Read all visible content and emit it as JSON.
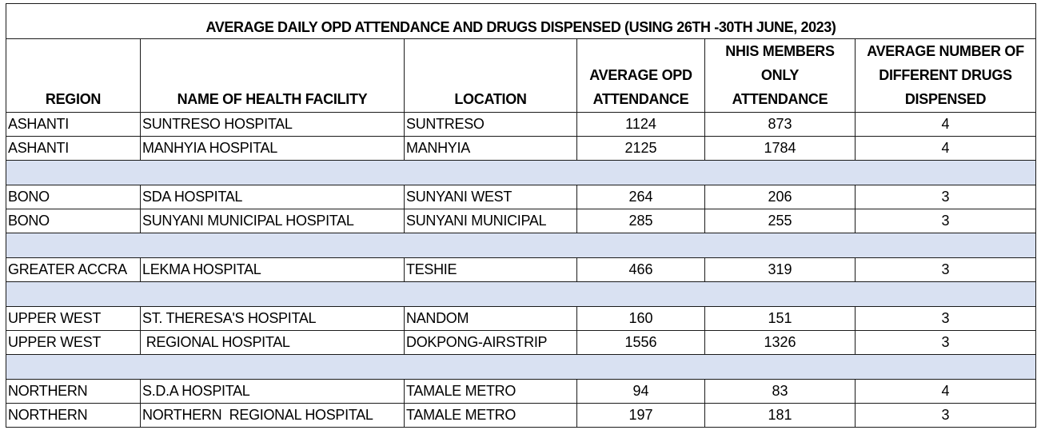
{
  "title": "AVERAGE DAILY OPD ATTENDANCE AND DRUGS DISPENSED (USING 26TH -30TH JUNE, 2023)",
  "headers": {
    "region": "REGION",
    "facility": "NAME OF HEALTH FACILITY",
    "location": "LOCATION",
    "opd_line1": "AVERAGE OPD",
    "opd_line2": "ATTENDANCE",
    "nhis_line1": "NHIS MEMBERS",
    "nhis_line2": "ONLY",
    "nhis_line3": "ATTENDANCE",
    "drugs_line1": "AVERAGE NUMBER OF",
    "drugs_line2": "DIFFERENT DRUGS",
    "drugs_line3": "DISPENSED"
  },
  "rows": [
    {
      "region": "ASHANTI",
      "facility": "SUNTRESO HOSPITAL",
      "location": "SUNTRESO",
      "opd": "1124",
      "nhis": "873",
      "drugs": "4"
    },
    {
      "region": "ASHANTI",
      "facility": "MANHYIA HOSPITAL",
      "location": "MANHYIA",
      "opd": "2125",
      "nhis": "1784",
      "drugs": "4"
    },
    {
      "region": "BONO",
      "facility": "SDA HOSPITAL",
      "location": "SUNYANI WEST",
      "opd": "264",
      "nhis": "206",
      "drugs": "3"
    },
    {
      "region": "BONO",
      "facility": "SUNYANI MUNICIPAL HOSPITAL",
      "location": "SUNYANI MUNICIPAL",
      "opd": "285",
      "nhis": "255",
      "drugs": "3"
    },
    {
      "region": "GREATER ACCRA",
      "facility": "LEKMA HOSPITAL",
      "location": "TESHIE",
      "opd": "466",
      "nhis": "319",
      "drugs": "3"
    },
    {
      "region": "UPPER WEST",
      "facility": "ST. THERESA'S HOSPITAL",
      "location": "NANDOM",
      "opd": "160",
      "nhis": "151",
      "drugs": "3"
    },
    {
      "region": "UPPER WEST",
      "facility": " REGIONAL HOSPITAL",
      "location": "DOKPONG-AIRSTRIP",
      "opd": "1556",
      "nhis": "1326",
      "drugs": "3"
    },
    {
      "region": "NORTHERN",
      "facility": "S.D.A HOSPITAL",
      "location": "TAMALE METRO",
      "opd": "94",
      "nhis": "83",
      "drugs": "4"
    },
    {
      "region": "NORTHERN",
      "facility": "NORTHERN  REGIONAL HOSPITAL",
      "location": "TAMALE METRO",
      "opd": "197",
      "nhis": "181",
      "drugs": "3"
    }
  ],
  "colors": {
    "spacer_fill": "#d9e1f2",
    "border": "#1a1a1a"
  }
}
